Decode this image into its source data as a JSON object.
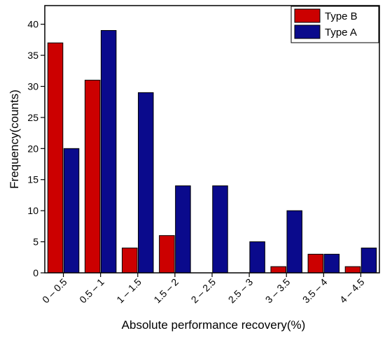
{
  "chart_data": {
    "type": "bar",
    "xlabel": "Absolute performance recovery(%)",
    "ylabel": "Frequency(counts)",
    "ylim": [
      0,
      43
    ],
    "yticks": [
      0,
      5,
      10,
      15,
      20,
      25,
      30,
      35,
      40
    ],
    "categories": [
      "0 – 0.5",
      "0.5 – 1",
      "1 – 1.5",
      "1.5 – 2",
      "2 – 2.5",
      "2.5 – 3",
      "3 – 3.5",
      "3.5 – 4",
      "4 – 4.5"
    ],
    "series": [
      {
        "name": "Type B",
        "color": "#cc0000",
        "values": [
          37,
          31,
          4,
          6,
          0,
          0,
          1,
          3,
          1
        ]
      },
      {
        "name": "Type A",
        "color": "#0a0a8c",
        "values": [
          20,
          39,
          29,
          14,
          14,
          5,
          10,
          3,
          4
        ]
      }
    ],
    "legend": {
      "placement": "top-right",
      "order": [
        "Type B",
        "Type A"
      ]
    },
    "grid": false
  }
}
